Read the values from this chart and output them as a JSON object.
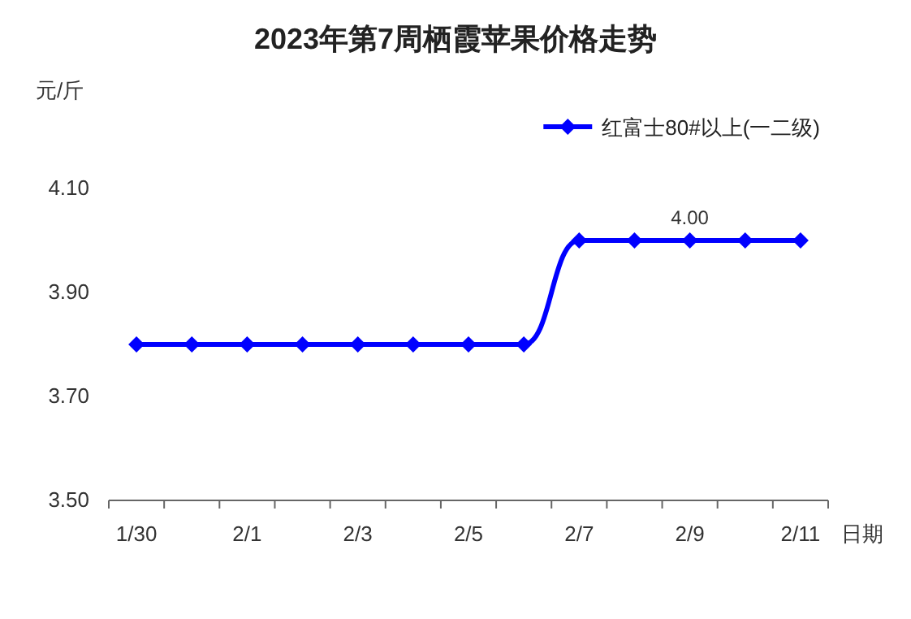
{
  "chart_data": {
    "type": "line",
    "title": "2023年第7周栖霞苹果价格走势",
    "ylabel": "元/斤",
    "xlabel": "日期",
    "categories": [
      "1/30",
      null,
      "2/1",
      null,
      "2/3",
      null,
      "2/5",
      null,
      "2/7",
      null,
      "2/9",
      null,
      "2/11"
    ],
    "series": [
      {
        "name": "红富士80#以上(一二级)",
        "color": "#0000ff",
        "values": [
          3.8,
          3.8,
          3.8,
          3.8,
          3.8,
          3.8,
          3.8,
          3.8,
          4.0,
          4.0,
          4.0,
          4.0,
          4.0
        ],
        "value_labels": [
          null,
          null,
          null,
          null,
          null,
          null,
          null,
          null,
          null,
          null,
          "4.00",
          null,
          null
        ]
      }
    ],
    "ylim": [
      3.5,
      4.1
    ],
    "yticks": [
      {
        "value": 3.5,
        "label": "3.50"
      },
      {
        "value": 3.7,
        "label": "3.70"
      },
      {
        "value": 3.9,
        "label": "3.90"
      },
      {
        "value": 4.1,
        "label": "4.10"
      }
    ],
    "marker": "diamond",
    "line_style": "solid",
    "legend": "top right",
    "grid": false
  }
}
